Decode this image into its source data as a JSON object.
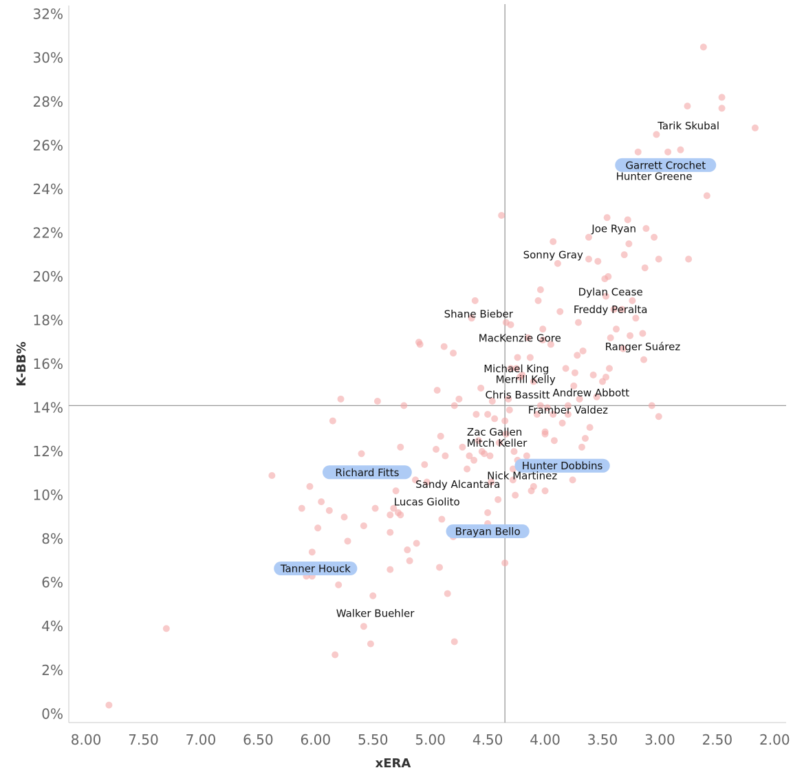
{
  "chart_data": {
    "type": "scatter",
    "xlabel": "xERA",
    "ylabel": "K-BB%",
    "xlim": [
      8.15,
      1.9
    ],
    "ylim": [
      -0.4,
      32.4
    ],
    "x_reversed": true,
    "grid": false,
    "x_ticks": [
      "8.00",
      "7.50",
      "7.00",
      "6.50",
      "6.00",
      "5.50",
      "5.00",
      "4.50",
      "4.00",
      "3.50",
      "3.00",
      "2.50",
      "2.00"
    ],
    "y_ticks": [
      "0%",
      "2%",
      "4%",
      "6%",
      "8%",
      "10%",
      "12%",
      "14%",
      "16%",
      "18%",
      "20%",
      "22%",
      "24%",
      "26%",
      "28%",
      "30%",
      "32%"
    ],
    "reference_lines": {
      "x": 4.35,
      "y": 14.1
    },
    "colors": {
      "point": "#f4a6a6",
      "highlight": "#aecbf5",
      "axis": "#999999",
      "reference": "#999999"
    },
    "points": [
      [
        7.8,
        0.4
      ],
      [
        7.3,
        3.9
      ],
      [
        6.38,
        10.9
      ],
      [
        6.12,
        9.4
      ],
      [
        6.05,
        10.4
      ],
      [
        6.03,
        7.4
      ],
      [
        6.08,
        6.3
      ],
      [
        6.03,
        6.3
      ],
      [
        5.98,
        8.5
      ],
      [
        5.95,
        9.7
      ],
      [
        5.88,
        9.3
      ],
      [
        5.85,
        13.4
      ],
      [
        5.83,
        2.7
      ],
      [
        5.8,
        5.9
      ],
      [
        5.78,
        14.4
      ],
      [
        5.75,
        9.0
      ],
      [
        5.72,
        7.9
      ],
      [
        5.6,
        11.9
      ],
      [
        5.58,
        8.6
      ],
      [
        5.58,
        4.0
      ],
      [
        5.52,
        3.2
      ],
      [
        5.5,
        5.4
      ],
      [
        5.48,
        9.4
      ],
      [
        5.46,
        14.3
      ],
      [
        5.35,
        8.3
      ],
      [
        5.35,
        9.1
      ],
      [
        5.35,
        6.6
      ],
      [
        5.32,
        9.4
      ],
      [
        5.3,
        10.2
      ],
      [
        5.28,
        9.2
      ],
      [
        5.26,
        9.1
      ],
      [
        5.26,
        12.2
      ],
      [
        5.23,
        14.1
      ],
      [
        5.2,
        7.5
      ],
      [
        5.18,
        7.0
      ],
      [
        5.13,
        10.7
      ],
      [
        5.12,
        7.8
      ],
      [
        5.1,
        17.0
      ],
      [
        5.09,
        16.9
      ],
      [
        5.05,
        11.4
      ],
      [
        5.03,
        10.6
      ],
      [
        4.95,
        12.1
      ],
      [
        4.94,
        14.8
      ],
      [
        4.91,
        12.7
      ],
      [
        4.92,
        6.7
      ],
      [
        4.9,
        8.9
      ],
      [
        4.88,
        16.8
      ],
      [
        4.87,
        11.8
      ],
      [
        4.85,
        5.5
      ],
      [
        4.8,
        8.1
      ],
      [
        4.79,
        3.3
      ],
      [
        4.79,
        14.1
      ],
      [
        4.8,
        16.5
      ],
      [
        4.75,
        14.4
      ],
      [
        4.72,
        12.2
      ],
      [
        4.68,
        11.2
      ],
      [
        4.66,
        11.8
      ],
      [
        4.64,
        18.1
      ],
      [
        4.61,
        18.9
      ],
      [
        4.62,
        11.6
      ],
      [
        4.6,
        13.7
      ],
      [
        4.58,
        12.5
      ],
      [
        4.56,
        14.9
      ],
      [
        4.55,
        12.0
      ],
      [
        4.53,
        11.9
      ],
      [
        4.5,
        9.2
      ],
      [
        4.5,
        13.7
      ],
      [
        4.5,
        8.7
      ],
      [
        4.48,
        11.8
      ],
      [
        4.47,
        10.6
      ],
      [
        4.46,
        14.3
      ],
      [
        4.44,
        13.5
      ],
      [
        4.4,
        12.4
      ],
      [
        4.41,
        9.8
      ],
      [
        4.38,
        22.8
      ],
      [
        4.35,
        6.9
      ],
      [
        4.35,
        13.4
      ],
      [
        4.34,
        17.9
      ],
      [
        4.34,
        12.8
      ],
      [
        4.32,
        14.4
      ],
      [
        4.31,
        13.9
      ],
      [
        4.3,
        17.8
      ],
      [
        4.3,
        15.8
      ],
      [
        4.28,
        11.2
      ],
      [
        4.28,
        10.7
      ],
      [
        4.27,
        12.0
      ],
      [
        4.26,
        10.0
      ],
      [
        4.25,
        15.8
      ],
      [
        4.24,
        11.6
      ],
      [
        4.24,
        16.3
      ],
      [
        4.22,
        15.4
      ],
      [
        4.2,
        15.5
      ],
      [
        4.16,
        11.8
      ],
      [
        4.15,
        17.2
      ],
      [
        4.13,
        16.3
      ],
      [
        4.12,
        10.2
      ],
      [
        4.1,
        15.2
      ],
      [
        4.1,
        10.4
      ],
      [
        4.07,
        13.7
      ],
      [
        4.06,
        18.9
      ],
      [
        4.04,
        19.4
      ],
      [
        4.04,
        14.1
      ],
      [
        4.02,
        17.6
      ],
      [
        4.02,
        17.1
      ],
      [
        4.0,
        10.2
      ],
      [
        4.0,
        12.9
      ],
      [
        4.0,
        12.8
      ],
      [
        3.98,
        14.0
      ],
      [
        3.95,
        16.9
      ],
      [
        3.93,
        21.6
      ],
      [
        3.93,
        13.7
      ],
      [
        3.92,
        12.5
      ],
      [
        3.89,
        20.6
      ],
      [
        3.87,
        18.4
      ],
      [
        3.85,
        13.3
      ],
      [
        3.82,
        15.8
      ],
      [
        3.8,
        13.7
      ],
      [
        3.8,
        14.1
      ],
      [
        3.76,
        10.7
      ],
      [
        3.75,
        15.0
      ],
      [
        3.74,
        15.6
      ],
      [
        3.72,
        16.4
      ],
      [
        3.71,
        17.9
      ],
      [
        3.7,
        14.4
      ],
      [
        3.68,
        12.2
      ],
      [
        3.67,
        16.6
      ],
      [
        3.65,
        12.6
      ],
      [
        3.62,
        20.8
      ],
      [
        3.62,
        21.8
      ],
      [
        3.61,
        13.1
      ],
      [
        3.58,
        15.5
      ],
      [
        3.55,
        14.5
      ],
      [
        3.54,
        20.7
      ],
      [
        3.5,
        15.2
      ],
      [
        3.48,
        19.9
      ],
      [
        3.47,
        19.1
      ],
      [
        3.46,
        22.7
      ],
      [
        3.47,
        15.4
      ],
      [
        3.45,
        20.0
      ],
      [
        3.44,
        15.8
      ],
      [
        3.43,
        17.2
      ],
      [
        3.4,
        18.5
      ],
      [
        3.38,
        17.6
      ],
      [
        3.33,
        18.5
      ],
      [
        3.32,
        16.7
      ],
      [
        3.31,
        21.0
      ],
      [
        3.28,
        22.6
      ],
      [
        3.27,
        21.5
      ],
      [
        3.26,
        17.3
      ],
      [
        3.24,
        18.9
      ],
      [
        3.21,
        18.1
      ],
      [
        3.19,
        25.7
      ],
      [
        3.15,
        17.4
      ],
      [
        3.14,
        16.2
      ],
      [
        3.13,
        20.4
      ],
      [
        3.12,
        22.2
      ],
      [
        3.07,
        14.1
      ],
      [
        3.05,
        21.8
      ],
      [
        3.03,
        26.5
      ],
      [
        3.01,
        13.6
      ],
      [
        3.01,
        20.8
      ],
      [
        2.93,
        25.7
      ],
      [
        2.82,
        25.8
      ],
      [
        2.76,
        27.8
      ],
      [
        2.75,
        20.8
      ],
      [
        2.62,
        30.5
      ],
      [
        2.59,
        23.7
      ],
      [
        2.46,
        28.2
      ],
      [
        2.46,
        27.7
      ],
      [
        2.17,
        26.8
      ]
    ],
    "labels": [
      {
        "text": "Tarik Skubal",
        "x": 2.75,
        "y": 26.9,
        "highlight": false
      },
      {
        "text": "Garrett Crochet",
        "x": 2.95,
        "y": 25.1,
        "highlight": true
      },
      {
        "text": "Hunter Greene",
        "x": 3.05,
        "y": 24.6,
        "highlight": false
      },
      {
        "text": "Joe Ryan",
        "x": 3.4,
        "y": 22.2,
        "highlight": false
      },
      {
        "text": "Sonny Gray",
        "x": 3.93,
        "y": 21.0,
        "highlight": false
      },
      {
        "text": "Dylan Cease",
        "x": 3.43,
        "y": 19.3,
        "highlight": false
      },
      {
        "text": "Freddy Peralta",
        "x": 3.43,
        "y": 18.5,
        "highlight": false
      },
      {
        "text": "Shane Bieber",
        "x": 4.58,
        "y": 18.3,
        "highlight": false
      },
      {
        "text": "MacKenzie Gore",
        "x": 4.22,
        "y": 17.2,
        "highlight": false
      },
      {
        "text": "Ranger Suárez",
        "x": 3.15,
        "y": 16.8,
        "highlight": false
      },
      {
        "text": "Michael King",
        "x": 4.25,
        "y": 15.8,
        "highlight": false
      },
      {
        "text": "Merrill Kelly",
        "x": 4.17,
        "y": 15.3,
        "highlight": false
      },
      {
        "text": "Andrew Abbott",
        "x": 3.6,
        "y": 14.7,
        "highlight": false
      },
      {
        "text": "Chris Bassitt",
        "x": 4.24,
        "y": 14.6,
        "highlight": false
      },
      {
        "text": "Framber Valdez",
        "x": 3.8,
        "y": 13.9,
        "highlight": false
      },
      {
        "text": "Zac Gallen",
        "x": 4.44,
        "y": 12.9,
        "highlight": false
      },
      {
        "text": "Mitch Keller",
        "x": 4.42,
        "y": 12.4,
        "highlight": false
      },
      {
        "text": "Hunter Dobbins",
        "x": 3.85,
        "y": 11.35,
        "highlight": true
      },
      {
        "text": "Richard Fitts",
        "x": 5.55,
        "y": 11.05,
        "highlight": true
      },
      {
        "text": "Nick Martinez",
        "x": 4.2,
        "y": 10.9,
        "highlight": false
      },
      {
        "text": "Sandy Alcantara",
        "x": 4.76,
        "y": 10.5,
        "highlight": false
      },
      {
        "text": "Lucas Giolito",
        "x": 5.03,
        "y": 9.7,
        "highlight": false
      },
      {
        "text": "Brayan Bello",
        "x": 4.5,
        "y": 8.35,
        "highlight": true
      },
      {
        "text": "Tanner Houck",
        "x": 6.0,
        "y": 6.65,
        "highlight": true
      },
      {
        "text": "Walker Buehler",
        "x": 5.48,
        "y": 4.6,
        "highlight": false
      }
    ]
  }
}
